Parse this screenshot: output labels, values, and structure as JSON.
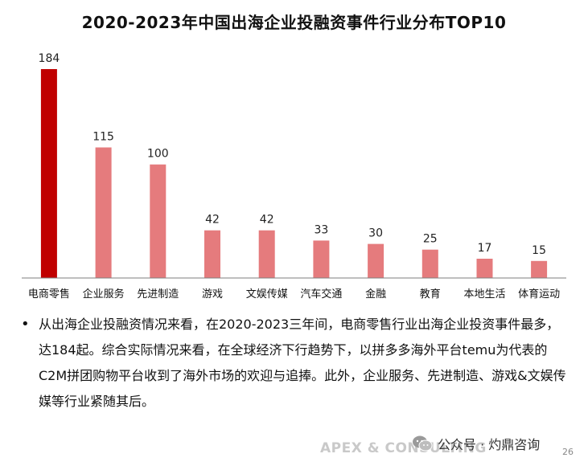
{
  "chart_data": {
    "type": "bar",
    "title": "2020-2023年中国出海企业投融资事件行业分布TOP10",
    "categories": [
      "电商零售",
      "企业服务",
      "先进制造",
      "游戏",
      "文娱传媒",
      "汽车交通",
      "金融",
      "教育",
      "本地生活",
      "体育运动"
    ],
    "values": [
      184,
      115,
      100,
      42,
      42,
      33,
      30,
      25,
      17,
      15
    ],
    "highlight_index": 0,
    "xlabel": "",
    "ylabel": "",
    "ylim": [
      0,
      184
    ],
    "grid": false,
    "legend": "none"
  },
  "colors": {
    "highlight": "#c00000",
    "bar": "#e57b7d",
    "axis": "#7f7f7f"
  },
  "text": {
    "bullet": "从出海企业投融资情况来看，在2020-2023三年间，电商零售行业出海企业投资事件最多，达184起。综合实际情况来看，在全球经济下行趋势下，以拼多多海外平台temu为代表的C2M拼团购物平台收到了海外市场的欢迎与追捧。此外，企业服务、先进制造、游戏&文娱传媒等行业紧随其后。",
    "watermark_logo": "APEX & CONSULTING",
    "wechat_label": "公众号 · 灼鼎咨询",
    "page_number": "26"
  }
}
